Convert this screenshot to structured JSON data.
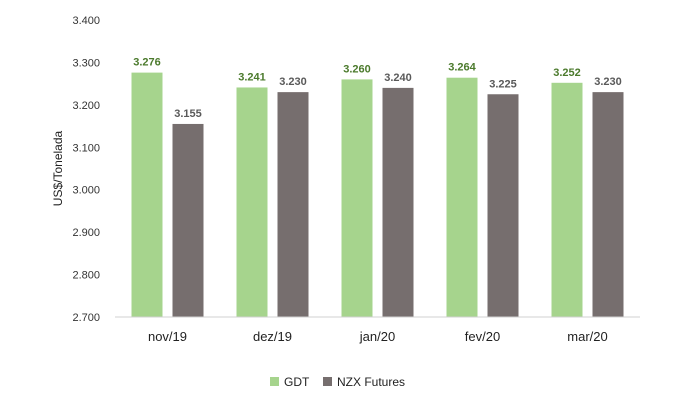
{
  "chart_data": {
    "type": "bar",
    "categories": [
      "nov/19",
      "dez/19",
      "jan/20",
      "fev/20",
      "mar/20"
    ],
    "series": [
      {
        "name": "GDT",
        "values": [
          3276,
          3241,
          3260,
          3264,
          3252
        ],
        "labels": [
          "3.276",
          "3.241",
          "3.260",
          "3.264",
          "3.252"
        ],
        "color": "#a6d48d",
        "label_color": "#4b7a2c"
      },
      {
        "name": "NZX Futures",
        "values": [
          3155,
          3230,
          3240,
          3225,
          3230
        ],
        "labels": [
          "3.155",
          "3.230",
          "3.240",
          "3.225",
          "3.230"
        ],
        "color": "#766e6e",
        "label_color": "#595959"
      }
    ],
    "ylabel": "US$/Tonelada",
    "ylim": [
      2700,
      3400
    ],
    "yticks": [
      2700,
      2800,
      2900,
      3000,
      3100,
      3200,
      3300,
      3400
    ],
    "ytick_labels": [
      "2.700",
      "2.800",
      "2.900",
      "3.000",
      "3.100",
      "3.200",
      "3.300",
      "3.400"
    ],
    "grid": false,
    "legend_position": "bottom"
  }
}
